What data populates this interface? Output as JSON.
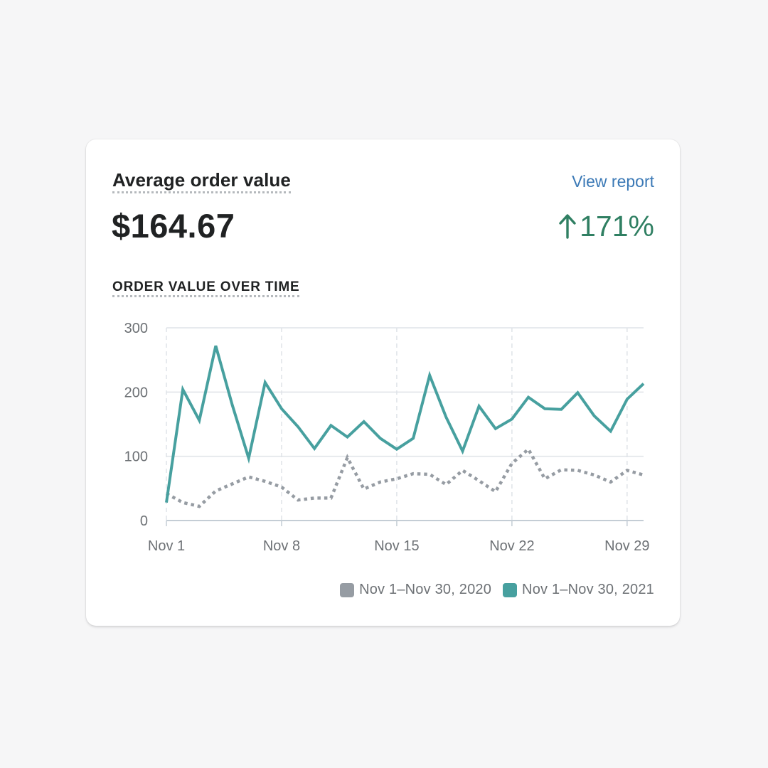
{
  "card": {
    "title": "Average order value",
    "view_report_label": "View report",
    "metric_value": "$164.67",
    "change_value": "171%",
    "change_icon": "arrow-up-icon",
    "section_title": "ORDER VALUE OVER TIME"
  },
  "colors": {
    "current": "#47a09f",
    "previous": "#969ca3",
    "positive": "#2f7f62",
    "link": "#3b79b6"
  },
  "legend": [
    {
      "label": "Nov 1–Nov 30, 2020",
      "color": "#969ca3"
    },
    {
      "label": "Nov 1–Nov 30, 2021",
      "color": "#47a09f"
    }
  ],
  "chart_data": {
    "type": "line",
    "x": [
      1,
      2,
      3,
      4,
      5,
      6,
      7,
      8,
      9,
      10,
      11,
      12,
      13,
      14,
      15,
      16,
      17,
      18,
      19,
      20,
      21,
      22,
      23,
      24,
      25,
      26,
      27,
      28,
      29,
      30
    ],
    "xticks": [
      {
        "day": 1,
        "label": "Nov 1"
      },
      {
        "day": 8,
        "label": "Nov 8"
      },
      {
        "day": 15,
        "label": "Nov 15"
      },
      {
        "day": 22,
        "label": "Nov 22"
      },
      {
        "day": 29,
        "label": "Nov 29"
      }
    ],
    "yticks": [
      0,
      100,
      200,
      300
    ],
    "ylim": [
      0,
      300
    ],
    "xlim": [
      1,
      30
    ],
    "grid": true,
    "legend_position": "bottom-right",
    "series": [
      {
        "name": "Nov 1–Nov 30, 2021",
        "style": "solid",
        "values": [
          28,
          204,
          156,
          272,
          180,
          97,
          215,
          174,
          146,
          112,
          148,
          130,
          154,
          128,
          111,
          128,
          226,
          161,
          108,
          178,
          143,
          158,
          192,
          174,
          173,
          199,
          163,
          139,
          189,
          213
        ]
      },
      {
        "name": "Nov 1–Nov 30, 2020",
        "style": "dotted",
        "values": [
          42,
          28,
          22,
          46,
          57,
          68,
          61,
          52,
          32,
          35,
          35,
          98,
          49,
          60,
          65,
          73,
          72,
          56,
          78,
          62,
          45,
          89,
          111,
          65,
          79,
          78,
          71,
          60,
          78,
          71
        ]
      }
    ]
  }
}
